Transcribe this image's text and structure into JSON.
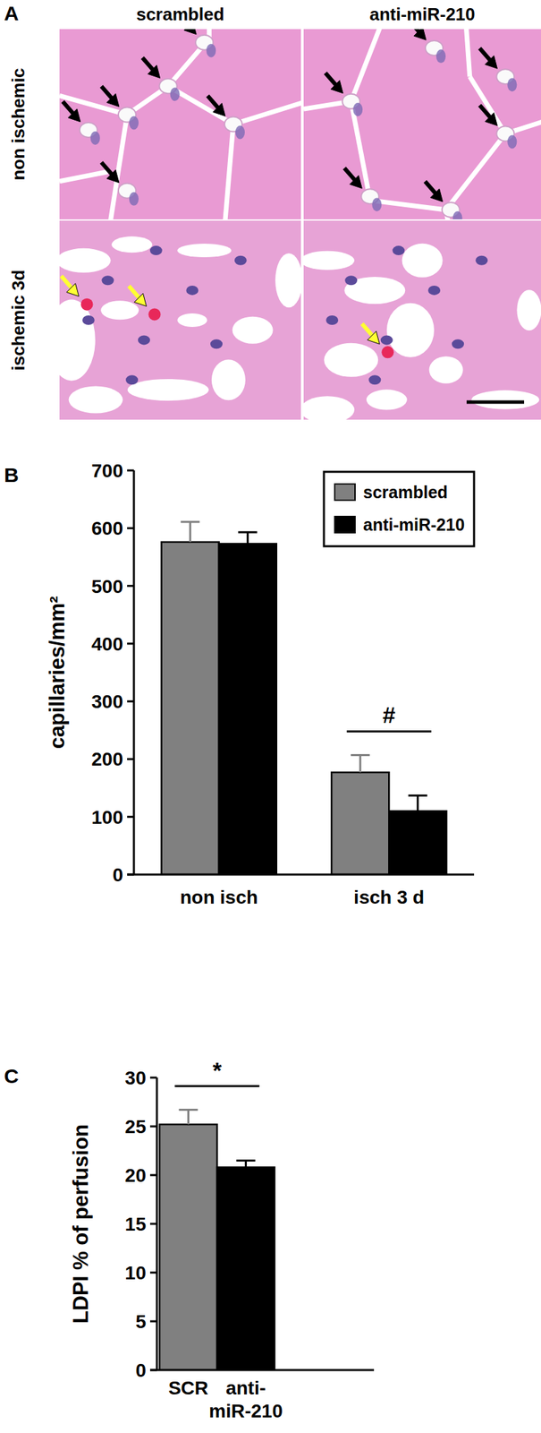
{
  "panel_a": {
    "panel": "A",
    "columns": [
      "scrambled",
      "anti-miR-210"
    ],
    "rows": [
      "non ischemic",
      "ischemic 3d"
    ]
  },
  "chart_data": [
    {
      "type": "bar",
      "panel": "B",
      "y_label": "capillaries/mm²",
      "categories": [
        "non isch",
        "isch 3 d"
      ],
      "series": [
        {
          "name": "scrambled",
          "color": "#808080",
          "values": [
            576,
            177
          ],
          "errors": [
            35,
            30
          ]
        },
        {
          "name": "anti-miR-210",
          "color": "#000000",
          "values": [
            573,
            110
          ],
          "errors": [
            20,
            27
          ]
        }
      ],
      "ylim": [
        0,
        700
      ],
      "yticks": [
        0,
        100,
        200,
        300,
        400,
        500,
        600,
        700
      ],
      "legend": "upper right",
      "annotations": [
        {
          "text": "#",
          "category": "isch 3 d"
        }
      ]
    },
    {
      "type": "bar",
      "panel": "C",
      "y_label": "LDPI % of perfusion",
      "categories": [
        "SCR",
        "anti-\nmiR-210"
      ],
      "values": [
        25.2,
        20.8
      ],
      "errors": [
        1.5,
        0.7
      ],
      "colors": [
        "#808080",
        "#000000"
      ],
      "ylim": [
        0,
        30
      ],
      "yticks": [
        0,
        5,
        10,
        15,
        20,
        25,
        30
      ],
      "annotations": [
        {
          "text": "*"
        }
      ]
    }
  ]
}
